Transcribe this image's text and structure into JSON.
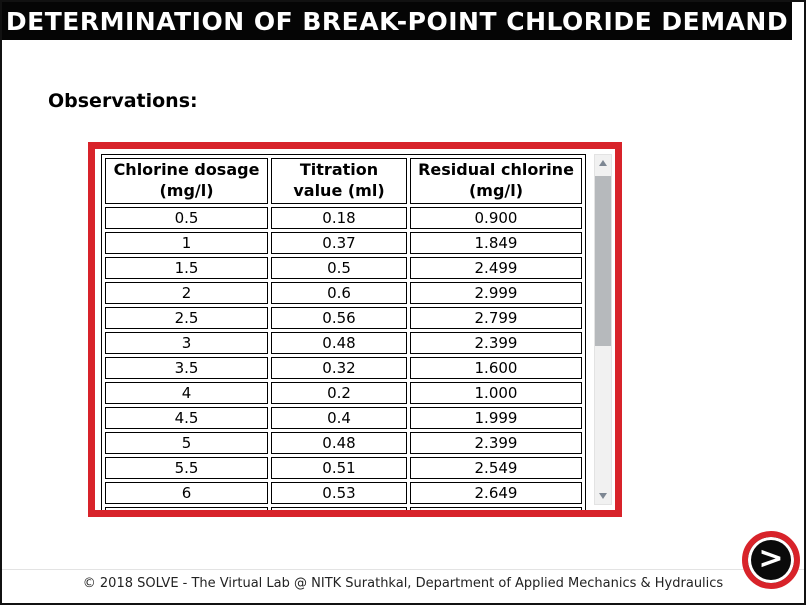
{
  "title": "DETERMINATION OF BREAK-POINT CHLORIDE DEMAND",
  "section_heading": "Observations:",
  "table": {
    "columns": [
      "Chlorine dosage\n(mg/l)",
      "Titration\nvalue (ml)",
      "Residual chlorine\n(mg/l)"
    ],
    "rows": [
      [
        "0.5",
        "0.18",
        "0.900"
      ],
      [
        "1",
        "0.37",
        "1.849"
      ],
      [
        "1.5",
        "0.5",
        "2.499"
      ],
      [
        "2",
        "0.6",
        "2.999"
      ],
      [
        "2.5",
        "0.56",
        "2.799"
      ],
      [
        "3",
        "0.48",
        "2.399"
      ],
      [
        "3.5",
        "0.32",
        "1.600"
      ],
      [
        "4",
        "0.2",
        "1.000"
      ],
      [
        "4.5",
        "0.4",
        "1.999"
      ],
      [
        "5",
        "0.48",
        "2.399"
      ],
      [
        "5.5",
        "0.51",
        "2.549"
      ],
      [
        "6",
        "0.53",
        "2.649"
      ]
    ]
  },
  "next_button": {
    "glyph": ">"
  },
  "footer": "© 2018 SOLVE - The Virtual Lab @ NITK Surathkal, Department of Applied Mechanics & Hydraulics",
  "colors": {
    "accent_red": "#d8232a",
    "title_bar_bg": "#050505",
    "title_bar_text": "#ffffff"
  }
}
